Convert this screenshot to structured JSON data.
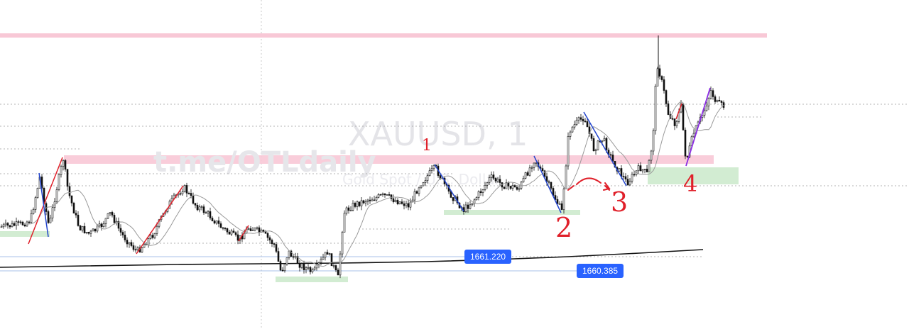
{
  "chart_data": {
    "type": "candlestick",
    "watermark": {
      "symbol": "XAUUSD, 1",
      "link": "t.me/OTLdaily",
      "subtitle": "Gold Spot / U.S. Dollar"
    },
    "price_labels": [
      {
        "value": "1661.220",
        "color": "#2962ff"
      },
      {
        "value": "1660.385",
        "color": "#2962ff"
      }
    ],
    "annotations": [
      "1",
      "2",
      "3",
      "4"
    ],
    "ylim": [
      1655,
      1680
    ],
    "colors": {
      "candle": "#000000",
      "resistance_zone": "#f8c8d6",
      "support_zone": "#d2ecd2",
      "impulse_up": "#e0202a",
      "impulse_down": "#2244cc",
      "impulse_purple": "#8a2be2",
      "moving_average": "#9a9a9a",
      "long_ma": "#111111",
      "price_line": "#a8c2e8"
    }
  }
}
